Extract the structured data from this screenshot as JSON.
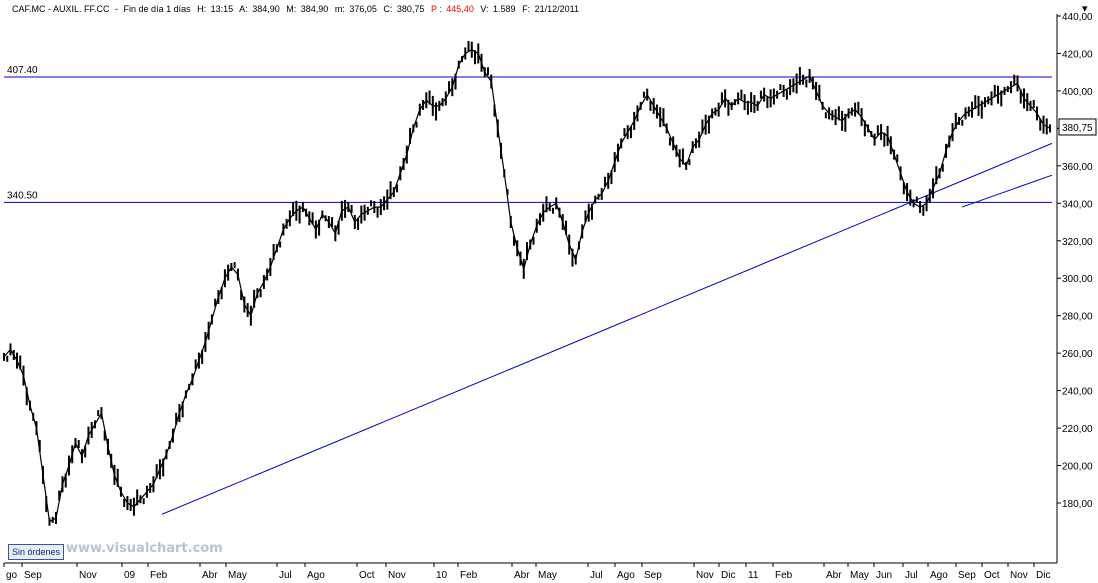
{
  "header": {
    "ticker": "CAF.MC - AUXIL. FF.CC",
    "period": "Fin de día 1 días",
    "h_label": "H:",
    "h_value": "13:15",
    "a_label": "A:",
    "a_value": "384,90",
    "m_label": "M:",
    "m_value": "384,90",
    "mi_label": "m:",
    "mi_value": "376,05",
    "c_label": "C:",
    "c_value": "380,75",
    "p_label": "P :",
    "p_value": "445,40",
    "v_label": "V:",
    "v_value": "1.589",
    "f_label": "F:",
    "f_value": "21/12/2011"
  },
  "footer": {
    "orders_button": "Sin órdenes",
    "brand": "www.visualchart.com"
  },
  "close_icon": "close-icon",
  "colors": {
    "price": "#000000",
    "lines": "#0000cc",
    "background": "#ffffff",
    "header_p": "#ff0000"
  },
  "chart_data": {
    "type": "line",
    "title": "",
    "ylim": [
      160,
      440
    ],
    "y_ticks": [
      "440,00",
      "420,00",
      "400,00",
      "380,00",
      "360,00",
      "340,00",
      "320,00",
      "300,00",
      "280,00",
      "260,00",
      "240,00",
      "220,00",
      "200,00",
      "180,00"
    ],
    "x_labels": [
      "go",
      "Sep",
      "Nov",
      "09",
      "Feb",
      "Abr",
      "May",
      "Jul",
      "Ago",
      "Oct",
      "Nov",
      "10",
      "Feb",
      "Abr",
      "May",
      "Jul",
      "Ago",
      "Sep",
      "Nov",
      "Dic",
      "11",
      "Feb",
      "Abr",
      "May",
      "Jun",
      "Jul",
      "Ago",
      "Sep",
      "Oct",
      "Nov",
      "Dic"
    ],
    "last_price_label": "380,75",
    "horizontal_lines": [
      {
        "label": "407.40",
        "value": 407.4
      },
      {
        "label": "340.50",
        "value": 340.5
      }
    ],
    "trend_lines": [
      {
        "from": {
          "x_label": "Feb",
          "y": 174
        },
        "to": {
          "x_label": "Dic",
          "y": 372
        }
      },
      {
        "from": {
          "x_label": "Sep",
          "y": 338
        },
        "to": {
          "x_label": "Dic",
          "y": 355
        }
      }
    ],
    "series": [
      {
        "values": [
          258,
          262,
          256,
          248,
          232,
          220,
          195,
          170,
          172,
          190,
          200,
          212,
          205,
          216,
          222,
          228,
          210,
          195,
          186,
          180,
          178,
          182,
          186,
          190,
          198,
          206,
          216,
          228,
          238,
          246,
          256,
          266,
          278,
          290,
          300,
          306,
          302,
          286,
          280,
          292,
          298,
          306,
          316,
          326,
          332,
          336,
          338,
          332,
          326,
          334,
          330,
          324,
          336,
          338,
          330,
          334,
          336,
          338,
          338,
          342,
          346,
          356,
          366,
          380,
          390,
          395,
          392,
          392,
          396,
          402,
          414,
          420,
          422,
          420,
          410,
          405,
          380,
          356,
          330,
          316,
          305,
          318,
          328,
          335,
          338,
          340,
          330,
          318,
          310,
          325,
          335,
          342,
          345,
          352,
          362,
          372,
          378,
          384,
          392,
          398,
          392,
          386,
          380,
          372,
          364,
          360,
          370,
          374,
          382,
          388,
          390,
          396,
          392,
          396,
          394,
          394,
          392,
          398,
          396,
          398,
          400,
          402,
          404,
          406,
          408,
          400,
          392,
          388,
          386,
          384,
          388,
          390,
          386,
          380,
          374,
          378,
          376,
          366,
          356,
          346,
          340,
          338,
          340,
          348,
          356,
          368,
          378,
          384,
          388,
          390,
          392,
          394,
          396,
          398,
          400,
          402,
          404,
          396,
          392,
          388,
          382,
          380
        ]
      }
    ]
  }
}
